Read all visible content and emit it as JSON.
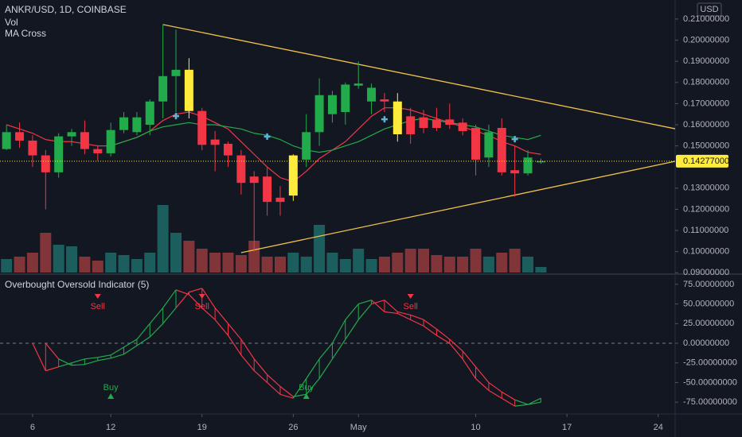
{
  "chart_data": [
    {
      "type": "candlestick",
      "title": "ANKR/USD, 1D, COINBASE",
      "volume_label": "Vol",
      "indicator_label": "MA Cross",
      "currency": "USD",
      "x": [
        4,
        5,
        6,
        7,
        8,
        9,
        10,
        11,
        12,
        13,
        14,
        15,
        16,
        17,
        18,
        19,
        20,
        21,
        22,
        23,
        24,
        25,
        26,
        27,
        28,
        29,
        30,
        31,
        32,
        33,
        34,
        35,
        36,
        37,
        38,
        39,
        40,
        41,
        42,
        43,
        44,
        45
      ],
      "open": [
        0.1485,
        0.1565,
        0.1525,
        0.1455,
        0.1375,
        0.1545,
        0.1565,
        0.1485,
        0.1465,
        0.1575,
        0.1565,
        0.16,
        0.171,
        0.183,
        0.186,
        0.1665,
        0.153,
        0.151,
        0.1455,
        0.1355,
        0.1355,
        0.1255,
        0.1265,
        0.1435,
        0.1565,
        0.165,
        0.166,
        0.1785,
        0.171,
        0.172,
        0.171,
        0.164,
        0.1635,
        0.1625,
        0.1625,
        0.161,
        0.1585,
        0.1445,
        0.1585,
        0.1385,
        0.137,
        0.1425
      ],
      "high": [
        0.16,
        0.161,
        0.155,
        0.148,
        0.156,
        0.158,
        0.162,
        0.15,
        0.161,
        0.166,
        0.166,
        0.172,
        0.2075,
        0.205,
        0.1915,
        0.168,
        0.157,
        0.152,
        0.148,
        0.138,
        0.14,
        0.131,
        0.146,
        0.165,
        0.182,
        0.176,
        0.18,
        0.19,
        0.1795,
        0.175,
        0.175,
        0.168,
        0.167,
        0.168,
        0.17,
        0.163,
        0.16,
        0.16,
        0.163,
        0.15,
        0.148,
        0.144
      ],
      "low": [
        0.148,
        0.149,
        0.14,
        0.12,
        0.135,
        0.15,
        0.146,
        0.143,
        0.145,
        0.156,
        0.155,
        0.155,
        0.163,
        0.166,
        0.163,
        0.148,
        0.138,
        0.14,
        0.127,
        0.1,
        0.117,
        0.117,
        0.124,
        0.14,
        0.15,
        0.161,
        0.16,
        0.177,
        0.165,
        0.166,
        0.152,
        0.151,
        0.156,
        0.157,
        0.158,
        0.155,
        0.136,
        0.14,
        0.136,
        0.126,
        0.136,
        0.1415
      ],
      "close": [
        0.1565,
        0.1525,
        0.1455,
        0.1375,
        0.1545,
        0.1565,
        0.1485,
        0.1465,
        0.1575,
        0.1635,
        0.1635,
        0.171,
        0.183,
        0.186,
        0.1665,
        0.1505,
        0.1505,
        0.1455,
        0.1325,
        0.1325,
        0.1235,
        0.1235,
        0.1455,
        0.1565,
        0.174,
        0.174,
        0.179,
        0.1795,
        0.1775,
        0.171,
        0.1555,
        0.1555,
        0.1585,
        0.1585,
        0.16,
        0.157,
        0.1435,
        0.1565,
        0.1375,
        0.137,
        0.1445,
        0.14277
      ],
      "volume": [
        17,
        20,
        25,
        50,
        35,
        33,
        20,
        15,
        25,
        22,
        17,
        25,
        85,
        50,
        40,
        30,
        25,
        25,
        22,
        40,
        20,
        20,
        25,
        20,
        60,
        25,
        17,
        30,
        17,
        20,
        25,
        30,
        30,
        22,
        20,
        20,
        30,
        20,
        25,
        30,
        20,
        7
      ],
      "volume_ylim": [
        0,
        100
      ],
      "up_color": "#22ab4a",
      "down_color": "#f23645",
      "highlight_color": "#ffeb3b",
      "highlight": [
        14,
        22,
        30
      ],
      "volume_up_color": "#26a69a",
      "volume_down_color": "#ef5350",
      "moving_averages": [
        {
          "color": "#f23645",
          "values": [
            0.16,
            0.158,
            0.156,
            0.153,
            0.152,
            0.152,
            0.151,
            0.15,
            0.15,
            0.152,
            0.154,
            0.157,
            0.162,
            0.165,
            0.166,
            0.164,
            0.161,
            0.158,
            0.152,
            0.146,
            0.14,
            0.135,
            0.133,
            0.138,
            0.144,
            0.148,
            0.152,
            0.158,
            0.164,
            0.168,
            0.168,
            0.167,
            0.165,
            0.163,
            0.161,
            0.159,
            0.157,
            0.155,
            0.152,
            0.15,
            0.147,
            0.146
          ]
        },
        {
          "color": "#22ab4a",
          "values": [
            null,
            null,
            null,
            null,
            null,
            null,
            null,
            null,
            0.15,
            0.152,
            0.154,
            0.157,
            0.159,
            0.16,
            0.161,
            0.16,
            0.16,
            0.159,
            0.158,
            0.156,
            0.155,
            0.153,
            0.15,
            0.148,
            0.147,
            0.148,
            0.15,
            0.152,
            0.155,
            0.158,
            0.16,
            0.162,
            0.163,
            0.162,
            0.161,
            0.16,
            0.159,
            0.157,
            0.155,
            0.154,
            0.153,
            0.155
          ]
        }
      ],
      "ma_crosses": {
        "color": "#5fb4d6",
        "x": [
          17,
          24,
          33,
          43
        ],
        "values": [
          0.1641,
          0.1544,
          0.1626,
          0.1532
        ]
      },
      "trend_lines": [
        {
          "color": "#f0c24b",
          "x": [
            16,
            55.3
          ],
          "values": [
            0.2074,
            0.1581
          ]
        },
        {
          "color": "#f0c24b",
          "x": [
            22,
            55.3
          ],
          "values": [
            0.0995,
            0.1427
          ]
        }
      ],
      "last_price": {
        "value": 0.14277,
        "label": "0.14277000"
      },
      "xlim": [
        3.5,
        55.3
      ],
      "xticks": [
        6,
        12,
        19,
        26,
        {
          "value": 31,
          "label": "May"
        },
        {
          "value": 40,
          "label": "10"
        },
        {
          "value": 47,
          "label": "17"
        },
        {
          "value": 54,
          "label": "24"
        }
      ],
      "ylim": [
        0.0901,
        0.219
      ],
      "yticks": [
        {
          "value": 0.09,
          "label": "0.09000000"
        },
        {
          "value": 0.1,
          "label": "0.10000000"
        },
        {
          "value": 0.11,
          "label": "0.11000000"
        },
        {
          "value": 0.12,
          "label": "0.12000000"
        },
        {
          "value": 0.13,
          "label": "0.13000000"
        },
        {
          "value": 0.15,
          "label": "0.15000000"
        },
        {
          "value": 0.16,
          "label": "0.16000000"
        },
        {
          "value": 0.17,
          "label": "0.17000000"
        },
        {
          "value": 0.18,
          "label": "0.18000000"
        },
        {
          "value": 0.19,
          "label": "0.19000000"
        },
        {
          "value": 0.2,
          "label": "0.20000000"
        },
        {
          "value": 0.21,
          "label": "0.21000000"
        }
      ]
    },
    {
      "type": "oscillator",
      "title": "Overbought Oversold Indicator (5)",
      "main": [
        null,
        null,
        0,
        -35,
        -30,
        -25,
        -20,
        -18,
        -15,
        -5,
        5,
        25,
        45,
        68,
        62,
        45,
        30,
        10,
        -15,
        -35,
        -50,
        -65,
        -70,
        -45,
        -20,
        0,
        30,
        50,
        55,
        40,
        38,
        30,
        22,
        10,
        0,
        -20,
        -45,
        -60,
        -70,
        -80,
        -78,
        -70
      ],
      "signal": [
        null,
        null,
        null,
        0,
        -20,
        -28,
        -27,
        -22,
        -19,
        -14,
        -3,
        8,
        25,
        45,
        65,
        70,
        45,
        25,
        5,
        -20,
        -40,
        -55,
        -68,
        -65,
        -45,
        -20,
        5,
        30,
        50,
        55,
        40,
        36,
        30,
        18,
        5,
        -10,
        -30,
        -50,
        -62,
        -72,
        -78,
        -75
      ],
      "up_color": "#22ab4a",
      "down_color": "#f23645",
      "signals": [
        {
          "label": "Sell",
          "x": 11,
          "color": "#f23645"
        },
        {
          "label": "Sell",
          "x": 19,
          "color": "#f23645"
        },
        {
          "label": "Sell",
          "x": 35,
          "color": "#f23645"
        },
        {
          "label": "Buy",
          "x": 12,
          "color": "#22ab4a"
        },
        {
          "label": "Buy",
          "x": 27,
          "color": "#22ab4a"
        }
      ],
      "ylim": [
        -89,
        86
      ],
      "yticks": [
        {
          "value": 75,
          "label": "75.00000000"
        },
        {
          "value": 50,
          "label": "50.00000000"
        },
        {
          "value": 25,
          "label": "25.00000000"
        },
        {
          "value": 0,
          "label": "0.00000000"
        },
        {
          "value": -25,
          "label": "-25.00000000"
        },
        {
          "value": -50,
          "label": "-50.00000000"
        },
        {
          "value": -75,
          "label": "-75.00000000"
        }
      ]
    }
  ]
}
